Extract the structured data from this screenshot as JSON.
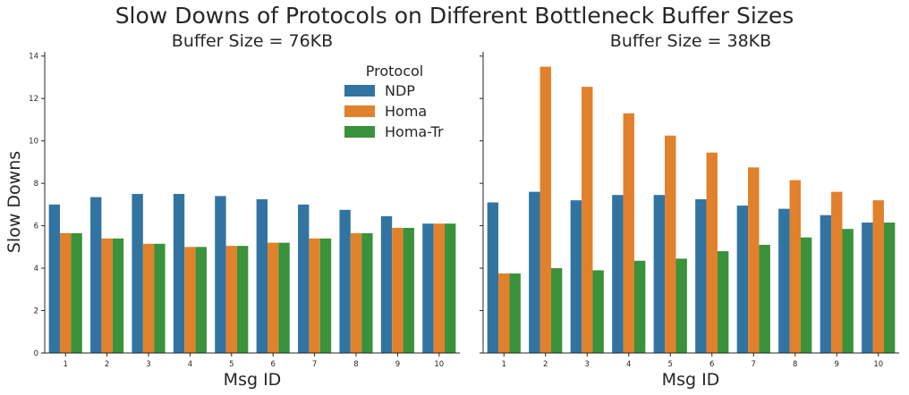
{
  "title": "Slow Downs of Protocols on Different Bottleneck Buffer Sizes",
  "legend": {
    "title": "Protocol"
  },
  "colors": {
    "NDP": "#3274a1",
    "Homa": "#e1812c",
    "Homa-Tr": "#3a923a"
  },
  "chart_data": [
    {
      "type": "bar",
      "title": "Buffer Size = 76KB",
      "xlabel": "Msg ID",
      "ylabel": "Slow Downs",
      "categories": [
        "1",
        "2",
        "3",
        "4",
        "5",
        "6",
        "7",
        "8",
        "9",
        "10"
      ],
      "ylim": [
        0,
        14.2
      ],
      "yticks": [
        "0",
        "2",
        "4",
        "6",
        "8",
        "10",
        "12",
        "14"
      ],
      "legend_position": "top-right",
      "series": [
        {
          "name": "NDP",
          "values": [
            7.0,
            7.35,
            7.5,
            7.5,
            7.4,
            7.25,
            7.0,
            6.75,
            6.45,
            6.1
          ]
        },
        {
          "name": "Homa",
          "values": [
            5.65,
            5.4,
            5.15,
            5.0,
            5.05,
            5.2,
            5.4,
            5.65,
            5.9,
            6.1
          ]
        },
        {
          "name": "Homa-Tr",
          "values": [
            5.65,
            5.4,
            5.15,
            5.0,
            5.05,
            5.2,
            5.4,
            5.65,
            5.9,
            6.1
          ]
        }
      ]
    },
    {
      "type": "bar",
      "title": "Buffer Size = 38KB",
      "xlabel": "Msg ID",
      "ylabel": "",
      "categories": [
        "1",
        "2",
        "3",
        "4",
        "5",
        "6",
        "7",
        "8",
        "9",
        "10"
      ],
      "ylim": [
        0,
        14.2
      ],
      "yticks": [
        "0",
        "2",
        "4",
        "6",
        "8",
        "10",
        "12",
        "14"
      ],
      "series": [
        {
          "name": "NDP",
          "values": [
            7.1,
            7.6,
            7.2,
            7.45,
            7.45,
            7.25,
            6.95,
            6.8,
            6.5,
            6.15
          ]
        },
        {
          "name": "Homa",
          "values": [
            3.75,
            13.5,
            12.55,
            11.3,
            10.25,
            9.45,
            8.75,
            8.15,
            7.6,
            7.2
          ]
        },
        {
          "name": "Homa-Tr",
          "values": [
            3.75,
            4.0,
            3.9,
            4.35,
            4.45,
            4.8,
            5.1,
            5.45,
            5.85,
            6.15
          ]
        }
      ]
    }
  ]
}
